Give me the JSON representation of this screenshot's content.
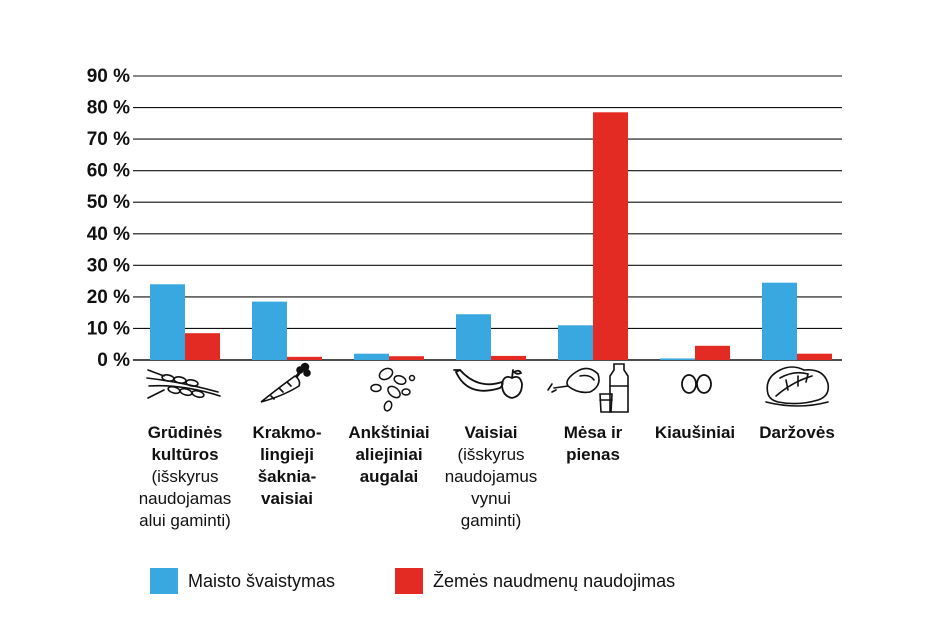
{
  "chart_data": {
    "type": "bar",
    "categories": [
      {
        "label": "Grūdinės\nkultūros",
        "note": "(išskyrus\nnaudojamas\nalui gaminti)",
        "icon": "wheat-icon"
      },
      {
        "label": "Krakmo-\nlingieji\nšaknia-\nvaisiai",
        "note": "",
        "icon": "carrot-icon"
      },
      {
        "label": "Ankštiniai\naliejiniai\naugalai",
        "note": "",
        "icon": "seeds-icon"
      },
      {
        "label": "Vaisiai",
        "note": "(išskyrus\nnaudojamus\nvynui\ngaminti)",
        "icon": "fruit-icon"
      },
      {
        "label": "Mėsa ir\npienas",
        "note": "",
        "icon": "meat-milk-icon"
      },
      {
        "label": "Kiaušiniai",
        "note": "",
        "icon": "eggs-icon"
      },
      {
        "label": "Daržovės",
        "note": "",
        "icon": "lettuce-icon"
      }
    ],
    "series": [
      {
        "name": "Maisto švaistymas",
        "color": "#3aa8e0",
        "values": [
          24,
          18.5,
          2,
          14.5,
          11,
          0.5,
          24.5
        ]
      },
      {
        "name": "Žemės naudmenų naudojimas",
        "color": "#e32b24",
        "values": [
          8.5,
          1,
          1.2,
          1.3,
          78.5,
          4.5,
          2
        ]
      }
    ],
    "yticks": [
      "0 %",
      "10 %",
      "20 %",
      "30 %",
      "40 %",
      "50 %",
      "60 %",
      "70 %",
      "80 %",
      "90 %"
    ],
    "ylim": [
      0,
      90
    ],
    "grid": true,
    "legend_position": "bottom"
  }
}
